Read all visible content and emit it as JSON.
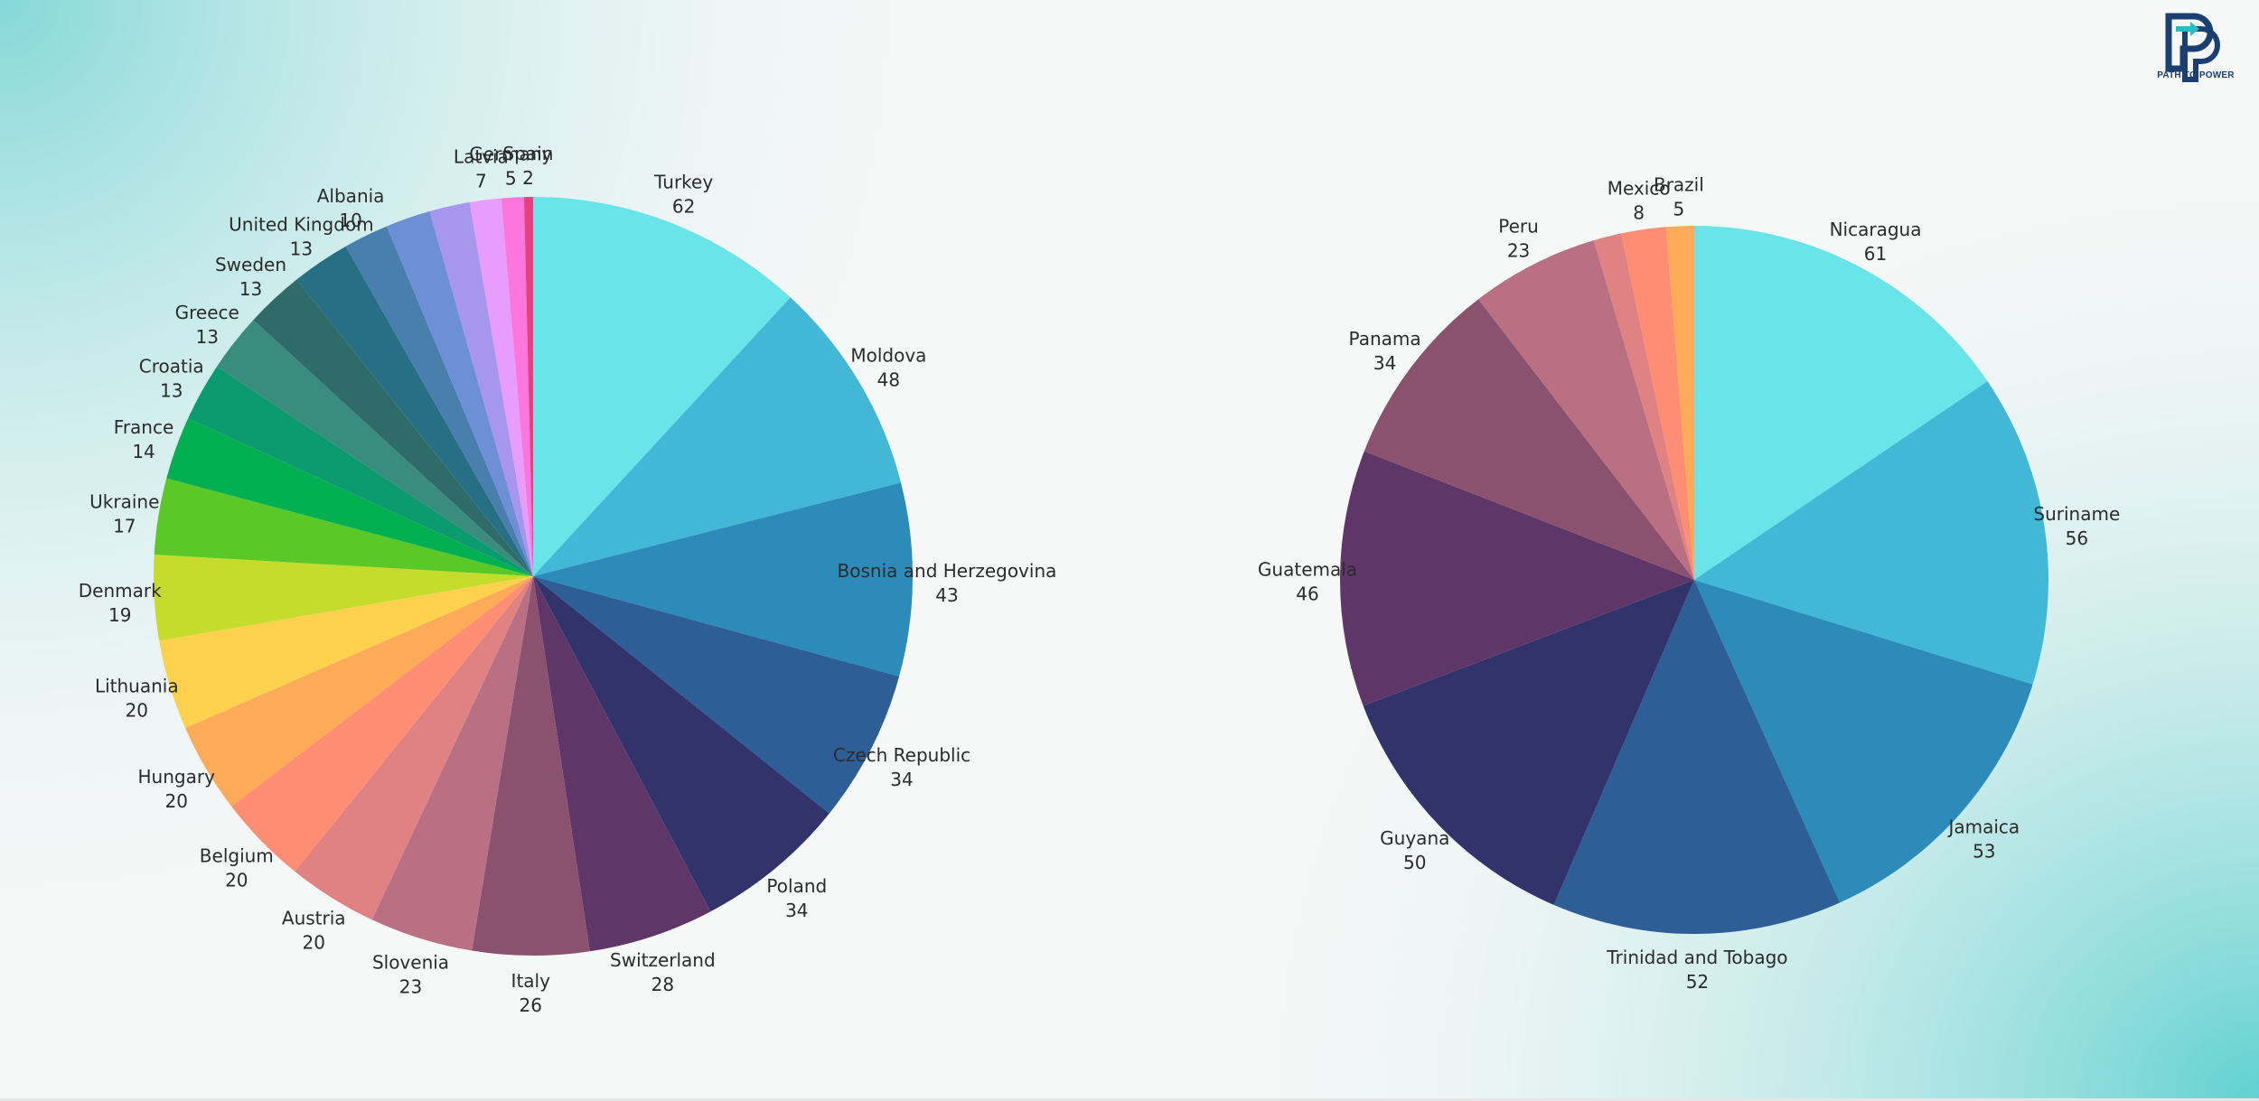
{
  "brand": {
    "name": "PATH TO POWER",
    "icon": "path-to-power-logo-icon",
    "colors": {
      "navy": "#1c3f73",
      "teal": "#2bbcc2"
    }
  },
  "chart_data": [
    {
      "type": "pie",
      "title": "",
      "start_angle": "12 o'clock",
      "direction": "clockwise",
      "slices": [
        {
          "label": "Turkey",
          "value": 62,
          "color": "#69e4e8"
        },
        {
          "label": "Moldova",
          "value": 48,
          "color": "#43b8d6"
        },
        {
          "label": "Bosnia and Herzegovina",
          "value": 43,
          "color": "#2d8bb9"
        },
        {
          "label": "Czech Republic",
          "value": 34,
          "color": "#2e5e96"
        },
        {
          "label": "Poland",
          "value": 34,
          "color": "#31336a"
        },
        {
          "label": "Switzerland",
          "value": 28,
          "color": "#5e3768"
        },
        {
          "label": "Italy",
          "value": 26,
          "color": "#8b5270"
        },
        {
          "label": "Slovenia",
          "value": 23,
          "color": "#b87082"
        },
        {
          "label": "Austria",
          "value": 20,
          "color": "#e08183"
        },
        {
          "label": "Belgium",
          "value": 20,
          "color": "#fd8e74"
        },
        {
          "label": "Hungary",
          "value": 20,
          "color": "#fdab58"
        },
        {
          "label": "Lithuania",
          "value": 20,
          "color": "#fdd14e"
        },
        {
          "label": "Denmark",
          "value": 19,
          "color": "#c6dc2d"
        },
        {
          "label": "Ukraine",
          "value": 17,
          "color": "#5ac827"
        },
        {
          "label": "France",
          "value": 14,
          "color": "#03b051"
        },
        {
          "label": "Croatia",
          "value": 13,
          "color": "#0c9a6f"
        },
        {
          "label": "Greece",
          "value": 13,
          "color": "#3a8d7c"
        },
        {
          "label": "Sweden",
          "value": 13,
          "color": "#2e6b69"
        },
        {
          "label": "United Kingdom",
          "value": 13,
          "color": "#266f84"
        },
        {
          "label": "Albania",
          "value": 10,
          "color": "#487fad"
        },
        {
          "label": "",
          "value": 10,
          "color": "#6d8fd6"
        },
        {
          "label": "",
          "value": 9,
          "color": "#a696ee"
        },
        {
          "label": "Latvia",
          "value": 7,
          "color": "#e89cfb"
        },
        {
          "label": "Germany",
          "value": 5,
          "color": "#fc76dd"
        },
        {
          "label": "Spain",
          "value": 2,
          "color": "#e7407f"
        }
      ]
    },
    {
      "type": "pie",
      "title": "",
      "start_angle": "12 o'clock",
      "direction": "clockwise",
      "slices": [
        {
          "label": "Nicaragua",
          "value": 61,
          "color": "#69e4e8"
        },
        {
          "label": "Suriname",
          "value": 56,
          "color": "#43b8d6"
        },
        {
          "label": "Jamaica",
          "value": 53,
          "color": "#2d8bb9"
        },
        {
          "label": "Trinidad and Tobago",
          "value": 52,
          "color": "#2e5e96"
        },
        {
          "label": "Guyana",
          "value": 50,
          "color": "#31336a"
        },
        {
          "label": "Guatemala",
          "value": 46,
          "color": "#5e3768"
        },
        {
          "label": "Panama",
          "value": 34,
          "color": "#8b5270"
        },
        {
          "label": "Peru",
          "value": 23,
          "color": "#b87082"
        },
        {
          "label": "",
          "value": 5,
          "color": "#e08183"
        },
        {
          "label": "Mexico",
          "value": 8,
          "color": "#fd8e74"
        },
        {
          "label": "Brazil",
          "value": 5,
          "color": "#fdab58"
        }
      ]
    }
  ]
}
